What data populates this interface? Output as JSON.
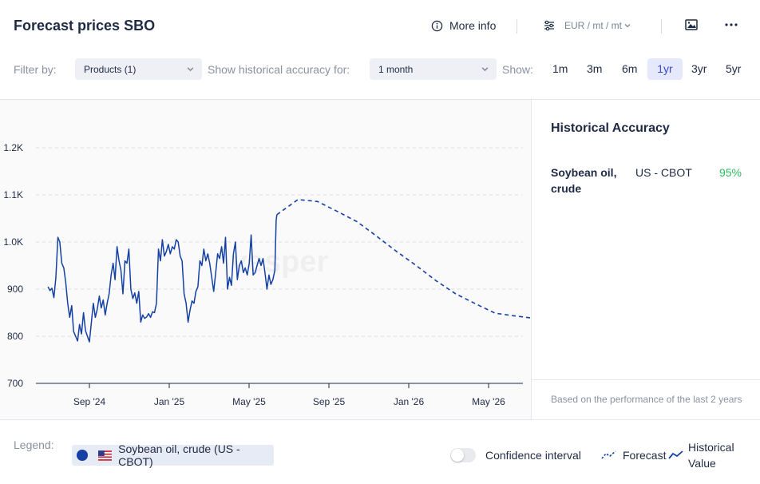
{
  "header": {
    "title": "Forecast prices SBO",
    "more_info_label": "More info",
    "currency_label": "EUR / mt / mt"
  },
  "filters": {
    "filter_by_label": "Filter by:",
    "products_value": "Products (1)",
    "historical_label": "Show historical accuracy for:",
    "historical_value": "1 month",
    "show_label": "Show:",
    "ranges": [
      "1m",
      "3m",
      "6m",
      "1yr",
      "3yr",
      "5yr"
    ],
    "active_range": "1yr"
  },
  "chart_data": {
    "type": "line",
    "watermark": "vesper",
    "y_ticks": [
      "1.2K",
      "1.1K",
      "1.0K",
      "900",
      "800",
      "700"
    ],
    "ylim": [
      700,
      1200
    ],
    "x_ticks": [
      "Sep '24",
      "Jan '25",
      "May '25",
      "Sep '25",
      "Jan '26",
      "May '26"
    ],
    "series": [
      {
        "name": "Historical Value",
        "style": "solid",
        "color": "#1541a5",
        "points": [
          [
            "2024-06-30",
            905
          ],
          [
            "2024-07-03",
            897
          ],
          [
            "2024-07-06",
            902
          ],
          [
            "2024-07-09",
            882
          ],
          [
            "2024-07-12",
            925
          ],
          [
            "2024-07-15",
            1010
          ],
          [
            "2024-07-18",
            1000
          ],
          [
            "2024-07-21",
            955
          ],
          [
            "2024-07-24",
            945
          ],
          [
            "2024-07-27",
            915
          ],
          [
            "2024-07-30",
            870
          ],
          [
            "2024-08-02",
            840
          ],
          [
            "2024-08-05",
            865
          ],
          [
            "2024-08-08",
            810
          ],
          [
            "2024-08-11",
            800
          ],
          [
            "2024-08-14",
            790
          ],
          [
            "2024-08-17",
            825
          ],
          [
            "2024-08-20",
            805
          ],
          [
            "2024-08-23",
            850
          ],
          [
            "2024-08-26",
            812
          ],
          [
            "2024-08-29",
            800
          ],
          [
            "2024-09-01",
            788
          ],
          [
            "2024-09-04",
            830
          ],
          [
            "2024-09-07",
            870
          ],
          [
            "2024-09-10",
            840
          ],
          [
            "2024-09-13",
            858
          ],
          [
            "2024-09-16",
            885
          ],
          [
            "2024-09-19",
            860
          ],
          [
            "2024-09-22",
            877
          ],
          [
            "2024-09-25",
            845
          ],
          [
            "2024-09-28",
            870
          ],
          [
            "2024-10-01",
            890
          ],
          [
            "2024-10-04",
            930
          ],
          [
            "2024-10-07",
            955
          ],
          [
            "2024-10-10",
            920
          ],
          [
            "2024-10-13",
            990
          ],
          [
            "2024-10-16",
            960
          ],
          [
            "2024-10-19",
            940
          ],
          [
            "2024-10-22",
            890
          ],
          [
            "2024-10-25",
            960
          ],
          [
            "2024-10-28",
            955
          ],
          [
            "2024-10-31",
            985
          ],
          [
            "2024-11-03",
            900
          ],
          [
            "2024-11-06",
            880
          ],
          [
            "2024-11-09",
            892
          ],
          [
            "2024-11-12",
            870
          ],
          [
            "2024-11-15",
            895
          ],
          [
            "2024-11-18",
            830
          ],
          [
            "2024-11-21",
            845
          ],
          [
            "2024-11-24",
            838
          ],
          [
            "2024-11-27",
            841
          ],
          [
            "2024-11-30",
            848
          ],
          [
            "2024-12-03",
            840
          ],
          [
            "2024-12-06",
            852
          ],
          [
            "2024-12-09",
            850
          ],
          [
            "2024-12-12",
            870
          ],
          [
            "2024-12-15",
            985
          ],
          [
            "2024-12-18",
            960
          ],
          [
            "2024-12-21",
            1005
          ],
          [
            "2024-12-24",
            970
          ],
          [
            "2024-12-27",
            980
          ],
          [
            "2024-12-30",
            995
          ],
          [
            "2025-01-02",
            975
          ],
          [
            "2025-01-05",
            990
          ],
          [
            "2025-01-08",
            985
          ],
          [
            "2025-01-11",
            1005
          ],
          [
            "2025-01-14",
            1000
          ],
          [
            "2025-01-17",
            970
          ],
          [
            "2025-01-20",
            960
          ],
          [
            "2025-01-23",
            890
          ],
          [
            "2025-01-26",
            870
          ],
          [
            "2025-01-29",
            830
          ],
          [
            "2025-02-01",
            855
          ],
          [
            "2025-02-04",
            875
          ],
          [
            "2025-02-07",
            870
          ],
          [
            "2025-02-10",
            895
          ],
          [
            "2025-02-13",
            905
          ],
          [
            "2025-02-16",
            960
          ],
          [
            "2025-02-19",
            950
          ],
          [
            "2025-02-22",
            985
          ],
          [
            "2025-02-25",
            960
          ],
          [
            "2025-02-28",
            975
          ],
          [
            "2025-03-03",
            955
          ],
          [
            "2025-03-06",
            925
          ],
          [
            "2025-03-09",
            895
          ],
          [
            "2025-03-12",
            935
          ],
          [
            "2025-03-15",
            975
          ],
          [
            "2025-03-18",
            965
          ],
          [
            "2025-03-21",
            990
          ],
          [
            "2025-03-24",
            955
          ],
          [
            "2025-03-27",
            1010
          ],
          [
            "2025-03-30",
            900
          ],
          [
            "2025-04-02",
            925
          ],
          [
            "2025-04-05",
            908
          ],
          [
            "2025-04-08",
            975
          ],
          [
            "2025-04-11",
            1000
          ],
          [
            "2025-04-14",
            920
          ],
          [
            "2025-04-17",
            950
          ],
          [
            "2025-04-20",
            960
          ],
          [
            "2025-04-23",
            935
          ],
          [
            "2025-04-26",
            945
          ],
          [
            "2025-04-29",
            930
          ],
          [
            "2025-05-02",
            955
          ],
          [
            "2025-05-05",
            1015
          ],
          [
            "2025-05-08",
            930
          ],
          [
            "2025-05-11",
            935
          ],
          [
            "2025-05-14",
            950
          ],
          [
            "2025-05-17",
            965
          ],
          [
            "2025-05-20",
            950
          ],
          [
            "2025-05-23",
            965
          ],
          [
            "2025-05-26",
            935
          ],
          [
            "2025-05-29",
            900
          ],
          [
            "2025-06-01",
            930
          ],
          [
            "2025-06-04",
            910
          ],
          [
            "2025-06-07",
            920
          ],
          [
            "2025-06-10",
            940
          ],
          [
            "2025-06-12",
            1045
          ],
          [
            "2025-06-13",
            1058
          ]
        ]
      },
      {
        "name": "Forecast",
        "style": "dashed",
        "color": "#1541a5",
        "points": [
          [
            "2025-06-13",
            1058
          ],
          [
            "2025-07-15",
            1090
          ],
          [
            "2025-08-14",
            1086
          ],
          [
            "2025-09-13",
            1065
          ],
          [
            "2025-10-13",
            1043
          ],
          [
            "2025-11-12",
            1012
          ],
          [
            "2025-12-12",
            980
          ],
          [
            "2026-01-11",
            950
          ],
          [
            "2026-02-10",
            918
          ],
          [
            "2026-03-12",
            890
          ],
          [
            "2026-04-11",
            869
          ],
          [
            "2026-05-11",
            849
          ],
          [
            "2026-06-10",
            843
          ],
          [
            "2026-07-10",
            838
          ]
        ]
      }
    ],
    "grid": true,
    "legend": "bottom"
  },
  "accuracy": {
    "title": "Historical Accuracy",
    "rows": [
      {
        "name": "Soybean oil, crude",
        "exchange": "US - CBOT",
        "value": "95%"
      }
    ],
    "footnote": "Based on the performance of the last 2 years"
  },
  "legend": {
    "label": "Legend:",
    "item": "Soybean oil, crude (US - CBOT)",
    "confidence_label": "Confidence interval",
    "forecast_label": "Forecast",
    "historical_label_1": "Historical",
    "historical_label_2": "Value"
  },
  "colors": {
    "accent": "#1541a5",
    "success": "#2cbb5d",
    "active_range_bg": "#e6e9fb"
  },
  "icons": [
    "info-icon",
    "sliders-icon",
    "chevron-down-icon",
    "image-icon",
    "more-horizontal-icon",
    "us-flag-icon"
  ]
}
